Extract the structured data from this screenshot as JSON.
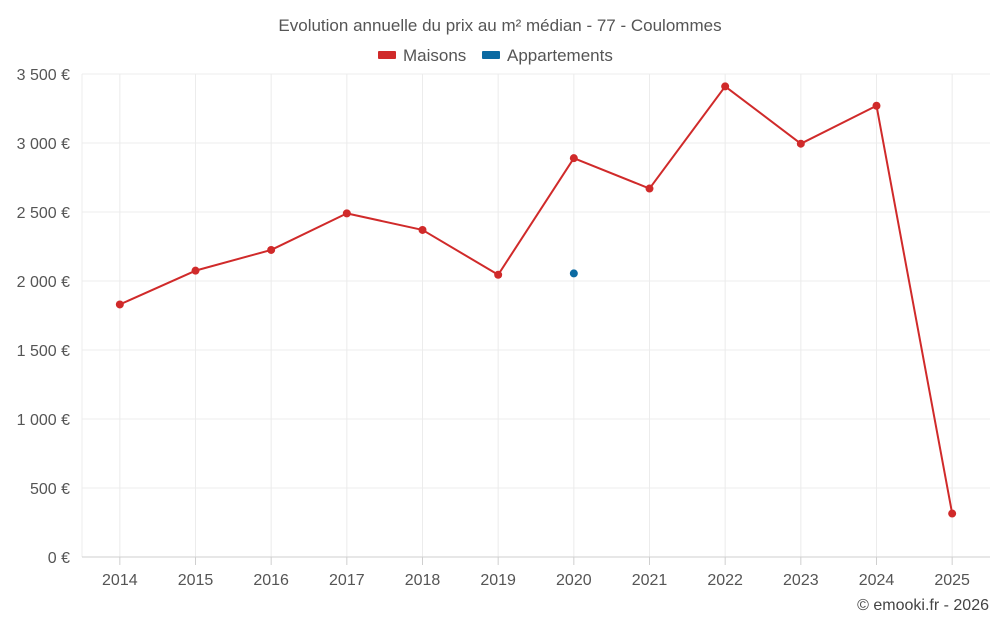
{
  "chart_data": {
    "type": "line",
    "title": "Evolution annuelle du prix au m² médian - 77 - Coulommes",
    "categories": [
      "2014",
      "2015",
      "2016",
      "2017",
      "2018",
      "2019",
      "2020",
      "2021",
      "2022",
      "2023",
      "2024",
      "2025"
    ],
    "series": [
      {
        "name": "Maisons",
        "color": "#d02a2a",
        "values": [
          1830,
          2075,
          2225,
          2490,
          2370,
          2045,
          2890,
          2670,
          3410,
          2995,
          3270,
          315
        ]
      },
      {
        "name": "Appartements",
        "color": "#0b6aa2",
        "values": [
          null,
          null,
          null,
          null,
          null,
          null,
          2055,
          null,
          null,
          null,
          null,
          null
        ]
      }
    ],
    "ylim": [
      0,
      3500
    ],
    "yticks": [
      0,
      500,
      1000,
      1500,
      2000,
      2500,
      3000,
      3500
    ],
    "ytick_labels": [
      "0 €",
      "500 €",
      "1 000 €",
      "1 500 €",
      "2 000 €",
      "2 500 €",
      "3 000 €",
      "3 500 €"
    ],
    "xlabel": "",
    "ylabel": "",
    "legend_position": "top-center",
    "grid": true
  },
  "credit": "© emooki.fr - 2026"
}
